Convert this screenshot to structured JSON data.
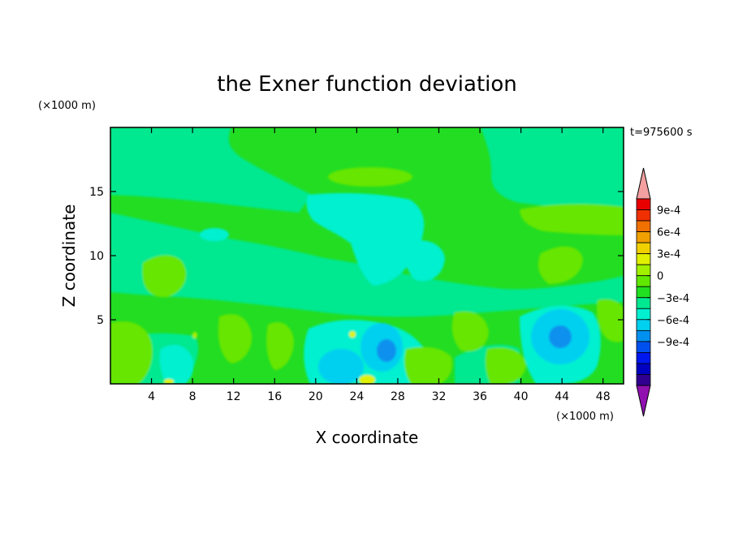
{
  "chart_data": {
    "type": "heatmap",
    "title": "the Exner function deviation",
    "xlabel": "X coordinate",
    "ylabel": "Z coordinate",
    "x_unit": "(×1000 m)",
    "y_unit": "(×1000 m)",
    "time_label": "t=975600 s",
    "xlim": [
      0,
      50
    ],
    "ylim": [
      0,
      20
    ],
    "x_ticks": [
      4,
      8,
      12,
      16,
      20,
      24,
      28,
      32,
      36,
      40,
      44,
      48
    ],
    "y_ticks": [
      5,
      10,
      15
    ],
    "colorbar": {
      "levels": [
        -0.0009,
        -0.0006,
        -0.0003,
        0,
        0.0003,
        0.0006,
        0.0009
      ],
      "labels": [
        "9e-4",
        "6e-4",
        "3e-4",
        "0",
        "−3e-4",
        "−6e-4",
        "−9e-4"
      ],
      "colors_top_to_bottom": [
        "#f4a0a0",
        "#e80000",
        "#f03000",
        "#f07000",
        "#f0a000",
        "#f0d000",
        "#e0f000",
        "#a0f000",
        "#60e800",
        "#20e020",
        "#00e890",
        "#00f0d0",
        "#00d0f0",
        "#0090f0",
        "#0050f0",
        "#0018f0",
        "#0000c0",
        "#300090",
        "#9010b0"
      ]
    },
    "field_colors": {
      "neg_medium": "#1090ee",
      "neg_small": "#00d0f0",
      "neg_tiny": "#00f0d0",
      "near_zero": "#00e890",
      "zero": "#22dd22",
      "pos_small": "#66e600",
      "pos_medium": "#a8ee00",
      "pos_large": "#e0f000"
    },
    "features": [
      {
        "type": "minimum",
        "x": 26.5,
        "z": 2.5,
        "level": -0.0005
      },
      {
        "type": "minimum",
        "x": 44.2,
        "z": 3.8,
        "level": -0.0005
      },
      {
        "type": "maximum",
        "x": 25,
        "z": 0.5,
        "level": 0.0003
      }
    ]
  }
}
